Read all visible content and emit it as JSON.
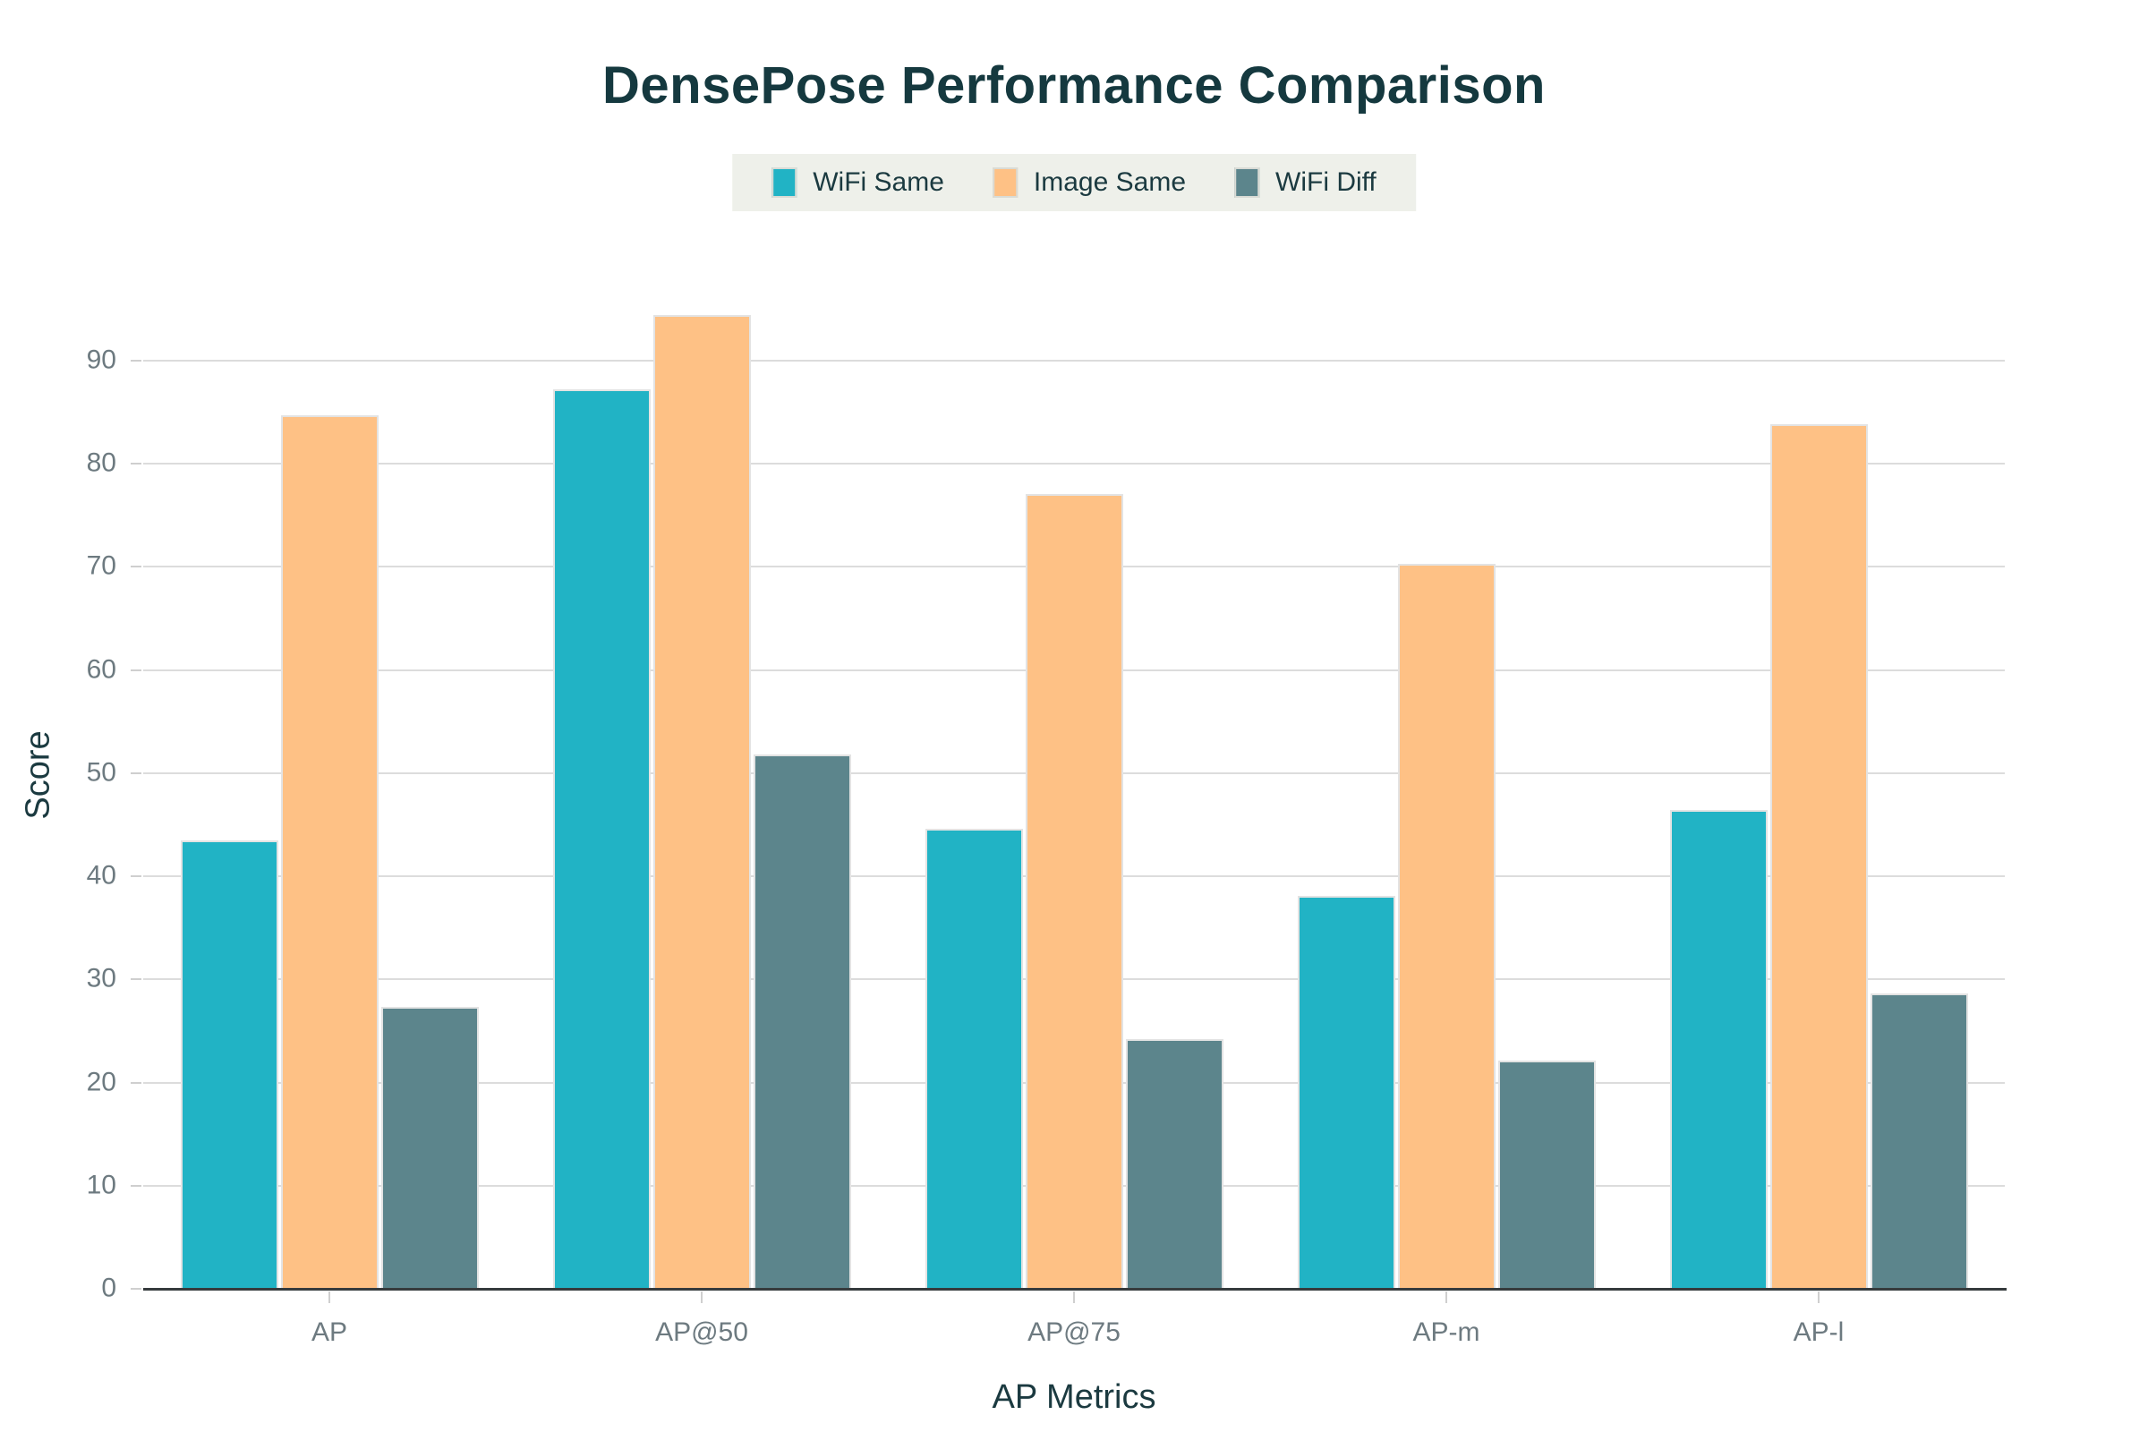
{
  "chart_data": {
    "type": "bar",
    "title": "DensePose Performance Comparison",
    "xlabel": "AP Metrics",
    "ylabel": "Score",
    "categories": [
      "AP",
      "AP@50",
      "AP@75",
      "AP-m",
      "AP-l"
    ],
    "series": [
      {
        "name": "WiFi Same",
        "color": "#21b3c5",
        "values": [
          43.5,
          87.2,
          44.6,
          38.1,
          46.4
        ]
      },
      {
        "name": "Image Same",
        "color": "#fec185",
        "values": [
          84.7,
          94.4,
          77.1,
          70.3,
          83.8
        ]
      },
      {
        "name": "WiFi Diff",
        "color": "#5c858c",
        "values": [
          27.3,
          51.8,
          24.2,
          22.1,
          28.6
        ]
      }
    ],
    "ylim": [
      0,
      90
    ],
    "yticks": [
      0,
      10,
      20,
      30,
      40,
      50,
      60,
      70,
      80,
      90
    ],
    "grid": true,
    "legend_position": "top-center"
  },
  "colors": {
    "title_text": "#15393f",
    "axis_label_text": "#1b3a40",
    "tick_label_text": "#6d7a80",
    "gridline": "#dcdcdc",
    "axis_baseline": "#363b3d",
    "legend_background": "#eef0ea",
    "background": "#ffffff"
  }
}
